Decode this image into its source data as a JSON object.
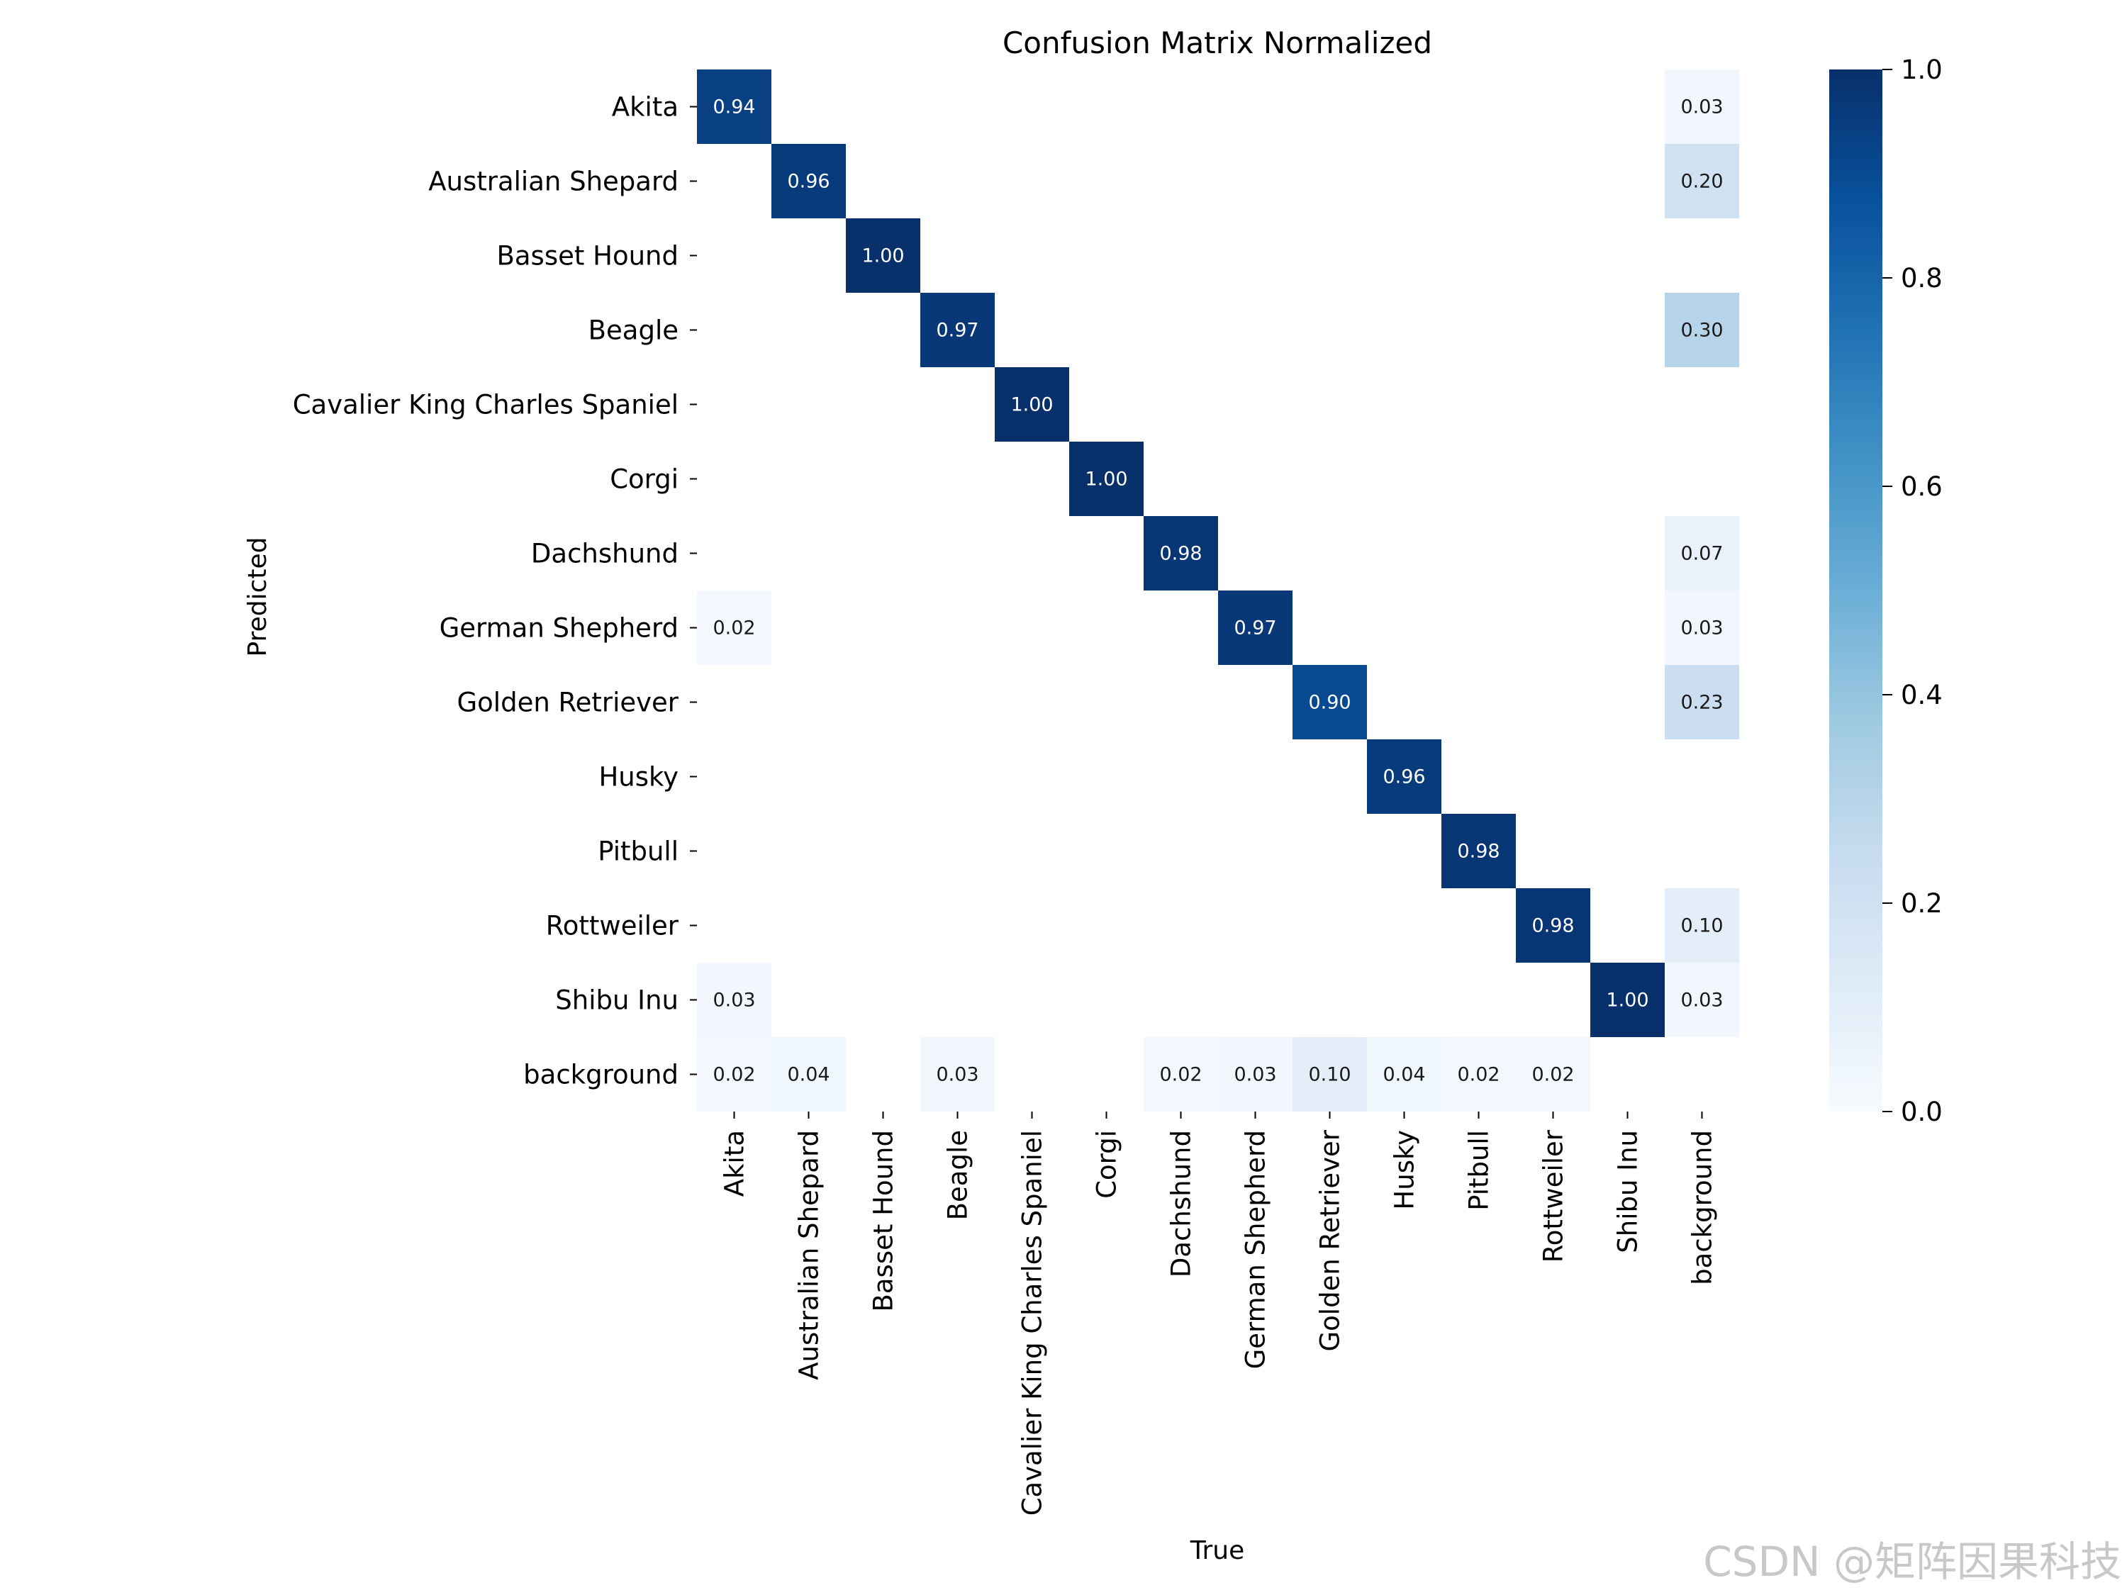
{
  "watermark": "CSDN @矩阵因果科技",
  "chart_data": {
    "type": "heatmap",
    "title": "Confusion Matrix Normalized",
    "xlabel": "True",
    "ylabel": "Predicted",
    "x_categories": [
      "Akita",
      "Australian Shepard",
      "Basset Hound",
      "Beagle",
      "Cavalier King Charles Spaniel",
      "Corgi",
      "Dachshund",
      "German Shepherd",
      "Golden Retriever",
      "Husky",
      "Pitbull",
      "Rottweiler",
      "Shibu Inu",
      "background"
    ],
    "y_categories": [
      "Akita",
      "Australian Shepard",
      "Basset Hound",
      "Beagle",
      "Cavalier King Charles Spaniel",
      "Corgi",
      "Dachshund",
      "German Shepherd",
      "Golden Retriever",
      "Husky",
      "Pitbull",
      "Rottweiler",
      "Shibu Inu",
      "background"
    ],
    "values": [
      [
        0.94,
        null,
        null,
        null,
        null,
        null,
        null,
        null,
        null,
        null,
        null,
        null,
        null,
        0.03
      ],
      [
        null,
        0.96,
        null,
        null,
        null,
        null,
        null,
        null,
        null,
        null,
        null,
        null,
        null,
        0.2
      ],
      [
        null,
        null,
        1.0,
        null,
        null,
        null,
        null,
        null,
        null,
        null,
        null,
        null,
        null,
        null
      ],
      [
        null,
        null,
        null,
        0.97,
        null,
        null,
        null,
        null,
        null,
        null,
        null,
        null,
        null,
        0.3
      ],
      [
        null,
        null,
        null,
        null,
        1.0,
        null,
        null,
        null,
        null,
        null,
        null,
        null,
        null,
        null
      ],
      [
        null,
        null,
        null,
        null,
        null,
        1.0,
        null,
        null,
        null,
        null,
        null,
        null,
        null,
        null
      ],
      [
        null,
        null,
        null,
        null,
        null,
        null,
        0.98,
        null,
        null,
        null,
        null,
        null,
        null,
        0.07
      ],
      [
        0.02,
        null,
        null,
        null,
        null,
        null,
        null,
        0.97,
        null,
        null,
        null,
        null,
        null,
        0.03
      ],
      [
        null,
        null,
        null,
        null,
        null,
        null,
        null,
        null,
        0.9,
        null,
        null,
        null,
        null,
        0.23
      ],
      [
        null,
        null,
        null,
        null,
        null,
        null,
        null,
        null,
        null,
        0.96,
        null,
        null,
        null,
        null
      ],
      [
        null,
        null,
        null,
        null,
        null,
        null,
        null,
        null,
        null,
        null,
        0.98,
        null,
        null,
        null
      ],
      [
        null,
        null,
        null,
        null,
        null,
        null,
        null,
        null,
        null,
        null,
        null,
        0.98,
        null,
        0.1
      ],
      [
        0.03,
        null,
        null,
        null,
        null,
        null,
        null,
        null,
        null,
        null,
        null,
        null,
        1.0,
        0.03
      ],
      [
        0.02,
        0.04,
        null,
        0.03,
        null,
        null,
        0.02,
        0.03,
        0.1,
        0.04,
        0.02,
        0.02,
        null,
        null
      ]
    ],
    "colorbar": {
      "range": [
        0.0,
        1.0
      ],
      "ticks": [
        0.0,
        0.2,
        0.4,
        0.6,
        0.8,
        1.0
      ],
      "tick_labels": [
        "0.0",
        "0.2",
        "0.4",
        "0.6",
        "0.8",
        "1.0"
      ],
      "colormap": "Blues"
    },
    "cell_text_light": "#ffffff",
    "cell_text_dark": "#1a1a1a",
    "grid": false
  }
}
